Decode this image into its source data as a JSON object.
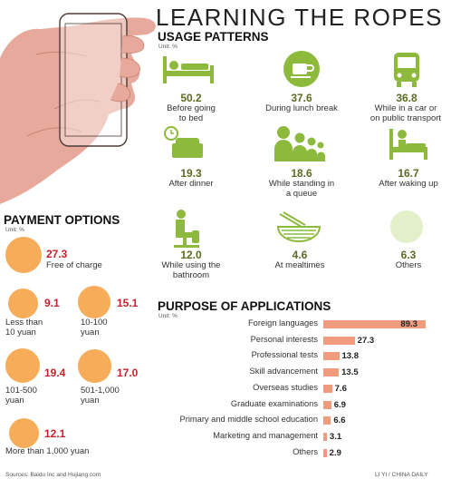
{
  "title": "LEARNING THE ROPES",
  "usage": {
    "title": "USAGE PATTERNS",
    "unit": "Unit: %",
    "items": [
      {
        "value": "50.2",
        "label_lines": [
          "Before going",
          "to bed"
        ],
        "icon": "bed-icon"
      },
      {
        "value": "37.6",
        "label_lines": [
          "During lunch break"
        ],
        "icon": "coffee-cup-icon"
      },
      {
        "value": "36.8",
        "label_lines": [
          "While in a car or",
          "on public transport"
        ],
        "icon": "bus-icon"
      },
      {
        "value": "19.3",
        "label_lines": [
          "After dinner"
        ],
        "icon": "armchair-clock-icon"
      },
      {
        "value": "18.6",
        "label_lines": [
          "While standing in",
          "a queue"
        ],
        "icon": "queue-people-icon"
      },
      {
        "value": "16.7",
        "label_lines": [
          "After waking up"
        ],
        "icon": "person-in-bed-icon"
      },
      {
        "value": "12.0",
        "label_lines": [
          "While using the",
          "bathroom"
        ],
        "icon": "toilet-icon"
      },
      {
        "value": "4.6",
        "label_lines": [
          "At mealtimes"
        ],
        "icon": "noodle-bowl-icon"
      },
      {
        "value": "6.3",
        "label_lines": [
          "Others"
        ],
        "icon": "circle-icon"
      }
    ]
  },
  "payment": {
    "title": "PAYMENT OPTIONS",
    "unit": "Unit: %",
    "items": [
      {
        "value": "27.3",
        "label_lines": [
          "Free of charge"
        ]
      },
      {
        "value": "9.1",
        "label_lines": [
          "Less than",
          "10 yuan"
        ]
      },
      {
        "value": "15.1",
        "label_lines": [
          "10-100",
          "yuan"
        ]
      },
      {
        "value": "19.4",
        "label_lines": [
          "101-500",
          "yuan"
        ]
      },
      {
        "value": "17.0",
        "label_lines": [
          "501-1,000",
          "yuan"
        ]
      },
      {
        "value": "12.1",
        "label_lines": [
          "More than 1,000 yuan"
        ]
      }
    ],
    "circle_color": "#f6ac58"
  },
  "purpose": {
    "title": "PURPOSE OF APPLICATIONS",
    "unit": "Unit: %"
  },
  "chart_data": {
    "type": "bar",
    "orientation": "horizontal",
    "title": "PURPOSE OF APPLICATIONS",
    "unit": "%",
    "categories": [
      "Foreign languages",
      "Personal interests",
      "Professional tests",
      "Skill advancement",
      "Overseas studies",
      "Graduate examinations",
      "Primary and middle school education",
      "Marketing and management",
      "Others"
    ],
    "values": [
      89.3,
      27.3,
      13.8,
      13.5,
      7.6,
      6.9,
      6.6,
      3.1,
      2.9
    ],
    "value_labels": [
      "89.3",
      "27.3",
      "13.8",
      "13.5",
      "7.6",
      "6.9",
      "6.6",
      "3.1",
      "2.9"
    ],
    "xlim": [
      0,
      100
    ],
    "bar_color": "#f09a7e",
    "grid": false
  },
  "colors": {
    "accent_green": "#8dba3c",
    "value_green": "#5b6b21",
    "value_red": "#c0252b"
  },
  "footer": {
    "source": "Sources: Baidu Inc and Hujiang.com",
    "credit": "LI YI / CHINA DAILY"
  }
}
